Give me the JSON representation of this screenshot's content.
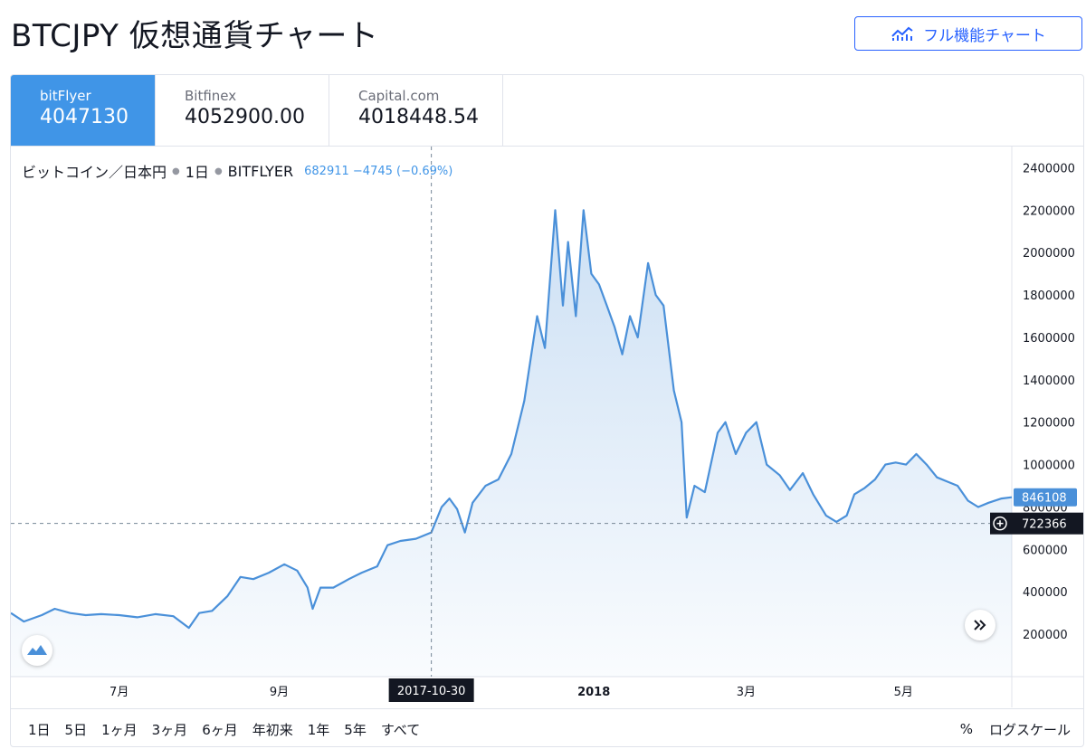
{
  "page": {
    "title": "BTCJPY 仮想通貨チャート",
    "full_chart_button": "フル機能チャート",
    "accent": "#2962ff"
  },
  "exchanges": [
    {
      "name": "bitFlyer",
      "price": "4047130",
      "active": true
    },
    {
      "name": "Bitfinex",
      "price": "4052900.00",
      "active": false
    },
    {
      "name": "Capital.com",
      "price": "4018448.54",
      "active": false
    }
  ],
  "legend": {
    "symbol": "ビットコイン／日本円",
    "interval": "1日",
    "exchange": "BITFLYER",
    "ohlc": "682911 −4745 (−0.69%)"
  },
  "range_buttons": [
    "1日",
    "5日",
    "1ヶ月",
    "3ヶ月",
    "6ヶ月",
    "年初来",
    "1年",
    "5年",
    "すべて"
  ],
  "scale_controls": {
    "percent": "%",
    "log": "ログスケール"
  },
  "chart_data": {
    "type": "area",
    "series_color": "#4a90d9",
    "x_tick_labels": [
      "7月",
      "9月",
      "2018",
      "3月",
      "5月"
    ],
    "y_tick_labels": [
      "200000",
      "400000",
      "600000",
      "800000",
      "1000000",
      "1200000",
      "1400000",
      "1600000",
      "1800000",
      "2000000",
      "2200000",
      "2400000"
    ],
    "ylim": [
      0,
      2500000
    ],
    "xlim": [
      "2017-05-20",
      "2018-06-12"
    ],
    "last_price_label": "846108",
    "crosshair": {
      "x": "2017-10-30",
      "y": 722366,
      "x_label": "2017-10-30",
      "y_label": "722366"
    },
    "points": [
      [
        "2017-05-20",
        300000
      ],
      [
        "2017-05-25",
        260000
      ],
      [
        "2017-06-01",
        290000
      ],
      [
        "2017-06-06",
        320000
      ],
      [
        "2017-06-12",
        300000
      ],
      [
        "2017-06-18",
        290000
      ],
      [
        "2017-06-24",
        295000
      ],
      [
        "2017-07-01",
        290000
      ],
      [
        "2017-07-08",
        280000
      ],
      [
        "2017-07-15",
        295000
      ],
      [
        "2017-07-22",
        285000
      ],
      [
        "2017-07-28",
        230000
      ],
      [
        "2017-08-01",
        300000
      ],
      [
        "2017-08-06",
        310000
      ],
      [
        "2017-08-12",
        380000
      ],
      [
        "2017-08-17",
        470000
      ],
      [
        "2017-08-22",
        460000
      ],
      [
        "2017-08-28",
        490000
      ],
      [
        "2017-09-03",
        530000
      ],
      [
        "2017-09-08",
        500000
      ],
      [
        "2017-09-12",
        420000
      ],
      [
        "2017-09-14",
        320000
      ],
      [
        "2017-09-17",
        420000
      ],
      [
        "2017-09-22",
        420000
      ],
      [
        "2017-09-28",
        460000
      ],
      [
        "2017-10-03",
        490000
      ],
      [
        "2017-10-09",
        520000
      ],
      [
        "2017-10-13",
        620000
      ],
      [
        "2017-10-18",
        640000
      ],
      [
        "2017-10-24",
        650000
      ],
      [
        "2017-10-30",
        680000
      ],
      [
        "2017-11-03",
        800000
      ],
      [
        "2017-11-06",
        840000
      ],
      [
        "2017-11-09",
        790000
      ],
      [
        "2017-11-12",
        680000
      ],
      [
        "2017-11-15",
        820000
      ],
      [
        "2017-11-20",
        900000
      ],
      [
        "2017-11-25",
        930000
      ],
      [
        "2017-11-30",
        1050000
      ],
      [
        "2017-12-05",
        1300000
      ],
      [
        "2017-12-10",
        1700000
      ],
      [
        "2017-12-13",
        1550000
      ],
      [
        "2017-12-17",
        2200000
      ],
      [
        "2017-12-20",
        1750000
      ],
      [
        "2017-12-22",
        2050000
      ],
      [
        "2017-12-25",
        1700000
      ],
      [
        "2017-12-28",
        2200000
      ],
      [
        "2017-12-31",
        1900000
      ],
      [
        "2018-01-03",
        1850000
      ],
      [
        "2018-01-06",
        1750000
      ],
      [
        "2018-01-09",
        1650000
      ],
      [
        "2018-01-12",
        1520000
      ],
      [
        "2018-01-15",
        1700000
      ],
      [
        "2018-01-18",
        1600000
      ],
      [
        "2018-01-22",
        1950000
      ],
      [
        "2018-01-25",
        1800000
      ],
      [
        "2018-01-28",
        1750000
      ],
      [
        "2018-02-01",
        1350000
      ],
      [
        "2018-02-04",
        1200000
      ],
      [
        "2018-02-06",
        750000
      ],
      [
        "2018-02-09",
        900000
      ],
      [
        "2018-02-13",
        870000
      ],
      [
        "2018-02-18",
        1150000
      ],
      [
        "2018-02-21",
        1200000
      ],
      [
        "2018-02-25",
        1050000
      ],
      [
        "2018-03-01",
        1150000
      ],
      [
        "2018-03-05",
        1200000
      ],
      [
        "2018-03-09",
        1000000
      ],
      [
        "2018-03-14",
        950000
      ],
      [
        "2018-03-18",
        880000
      ],
      [
        "2018-03-23",
        960000
      ],
      [
        "2018-03-27",
        860000
      ],
      [
        "2018-04-01",
        760000
      ],
      [
        "2018-04-05",
        730000
      ],
      [
        "2018-04-09",
        760000
      ],
      [
        "2018-04-12",
        860000
      ],
      [
        "2018-04-16",
        890000
      ],
      [
        "2018-04-20",
        930000
      ],
      [
        "2018-04-24",
        1000000
      ],
      [
        "2018-04-28",
        1010000
      ],
      [
        "2018-05-02",
        1000000
      ],
      [
        "2018-05-06",
        1050000
      ],
      [
        "2018-05-10",
        1000000
      ],
      [
        "2018-05-14",
        940000
      ],
      [
        "2018-05-18",
        920000
      ],
      [
        "2018-05-22",
        900000
      ],
      [
        "2018-05-26",
        830000
      ],
      [
        "2018-05-30",
        800000
      ],
      [
        "2018-06-03",
        820000
      ],
      [
        "2018-06-08",
        840000
      ],
      [
        "2018-06-12",
        846108
      ]
    ]
  }
}
